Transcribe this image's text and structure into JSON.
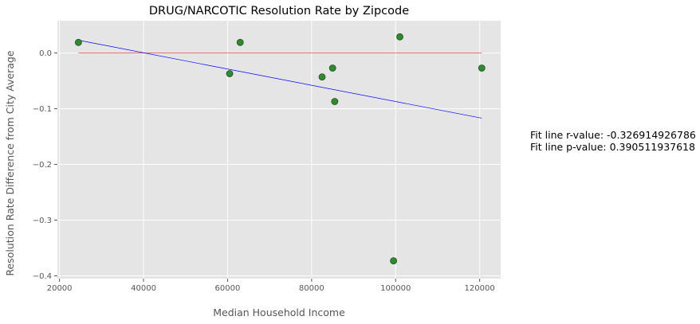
{
  "chart_data": {
    "type": "scatter",
    "title": "DRUG/NARCOTIC Resolution Rate by Zipcode",
    "xlabel": "Median Household Income",
    "ylabel": "Resolution Rate Difference from City Average",
    "xlim": [
      19500,
      125000
    ],
    "ylim": [
      -0.405,
      0.058
    ],
    "xticks": [
      20000,
      40000,
      60000,
      80000,
      100000,
      120000
    ],
    "yticks": [
      0.0,
      -0.1,
      -0.2,
      -0.3,
      -0.4
    ],
    "xtick_labels": [
      "20000",
      "40000",
      "60000",
      "80000",
      "100000",
      "120000"
    ],
    "ytick_labels": [
      "0.0",
      "−0.1",
      "−0.2",
      "−0.3",
      "−0.4"
    ],
    "grid": true,
    "points": [
      {
        "x": 24500,
        "y": 0.019
      },
      {
        "x": 60500,
        "y": -0.037
      },
      {
        "x": 63000,
        "y": 0.019
      },
      {
        "x": 82500,
        "y": -0.043
      },
      {
        "x": 85000,
        "y": -0.027
      },
      {
        "x": 85500,
        "y": -0.087
      },
      {
        "x": 99500,
        "y": -0.373
      },
      {
        "x": 101000,
        "y": 0.029
      },
      {
        "x": 120500,
        "y": -0.027
      }
    ],
    "fit_line": {
      "x": [
        24500,
        120500
      ],
      "y": [
        0.023,
        -0.117
      ]
    },
    "reference_line": {
      "x": [
        24500,
        120500
      ],
      "y": [
        0.0,
        0.0
      ]
    },
    "annotations": [
      "Fit line r-value: -0.326914926786",
      "Fit line p-value: 0.390511937618"
    ],
    "colors": {
      "background": "#e5e5e5",
      "grid": "#ffffff",
      "points": "#2e8b2e",
      "point_edge": "#1f4f1f",
      "fit_line": "#0000ff",
      "reference_line": "#e06060"
    }
  }
}
